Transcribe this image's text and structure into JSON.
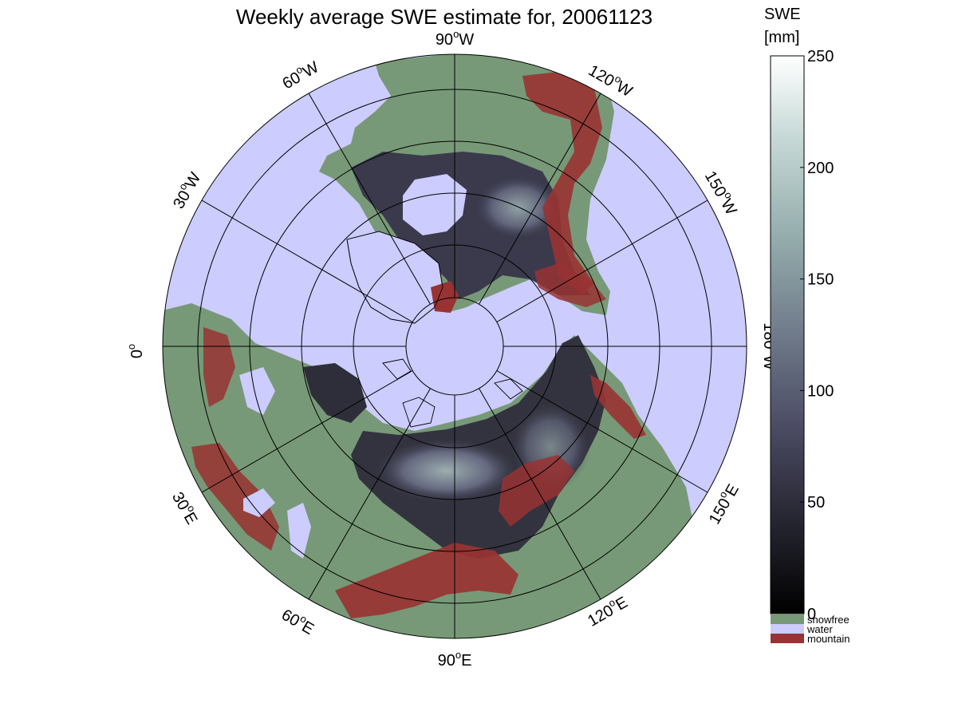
{
  "title": "Weekly average SWE estimate for, 20061123",
  "map": {
    "projection": "north polar stereographic",
    "colors": {
      "water": "#CCCCFF",
      "snowfree": "#779977",
      "mountain": "#993333",
      "snow_low": "#1a1a22",
      "snow_mid": "#50506a",
      "snow_high": "#a0b8b8"
    },
    "longitude_labels": [
      {
        "id": "lon-90w",
        "text": "90°W",
        "deg": "90",
        "hem": "W"
      },
      {
        "id": "lon-120w",
        "text": "120°W",
        "deg": "120",
        "hem": "W"
      },
      {
        "id": "lon-150w",
        "text": "150°W",
        "deg": "150",
        "hem": "W"
      },
      {
        "id": "lon-180w",
        "text": "180°W",
        "deg": "180",
        "hem": "W"
      },
      {
        "id": "lon-150e",
        "text": "150°E",
        "deg": "150",
        "hem": "E"
      },
      {
        "id": "lon-120e",
        "text": "120°E",
        "deg": "120",
        "hem": "E"
      },
      {
        "id": "lon-90e",
        "text": "90°E",
        "deg": "90",
        "hem": "E"
      },
      {
        "id": "lon-60e",
        "text": "60°E",
        "deg": "60",
        "hem": "E"
      },
      {
        "id": "lon-30e",
        "text": "30°E",
        "deg": "30",
        "hem": "E"
      },
      {
        "id": "lon-0",
        "text": "0°",
        "deg": "0",
        "hem": ""
      },
      {
        "id": "lon-30w",
        "text": "30°W",
        "deg": "30",
        "hem": "W"
      },
      {
        "id": "lon-60w",
        "text": "60°W",
        "deg": "60",
        "hem": "W"
      }
    ]
  },
  "colorbar": {
    "label_line1": "SWE",
    "label_line2": "[mm]",
    "range": [
      0,
      250
    ],
    "ticks": [
      "0",
      "50",
      "100",
      "150",
      "200",
      "250"
    ],
    "gradient": [
      "#000000",
      "#22222c",
      "#4a4a62",
      "#6f7a8a",
      "#93abab",
      "#c5d8d6",
      "#ffffff"
    ],
    "categories": [
      {
        "name": "snowfree",
        "color": "#779977"
      },
      {
        "name": "water",
        "color": "#CCCCFF"
      },
      {
        "name": "mountain",
        "color": "#993333"
      }
    ]
  }
}
